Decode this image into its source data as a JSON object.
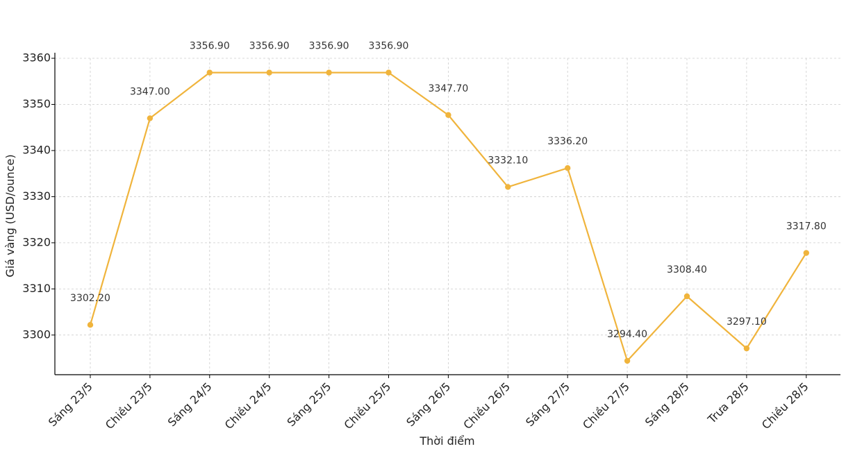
{
  "chart_data": {
    "type": "line",
    "categories": [
      "Sáng 23/5",
      "Chiều 23/5",
      "Sáng 24/5",
      "Chiều 24/5",
      "Sáng 25/5",
      "Chiều 25/5",
      "Sáng 26/5",
      "Chiều 26/5",
      "Sáng 27/5",
      "Chiều 27/5",
      "Sáng 28/5",
      "Trưa 28/5",
      "Chiều 28/5"
    ],
    "series": [
      {
        "values": [
          3302.2,
          3347.0,
          3356.9,
          3356.9,
          3356.9,
          3356.9,
          3347.7,
          3332.1,
          3336.2,
          3294.4,
          3308.4,
          3297.1,
          3317.8
        ]
      }
    ],
    "data_labels": [
      "3302.20",
      "3347.00",
      "3356.90",
      "3356.90",
      "3356.90",
      "3356.90",
      "3347.70",
      "3332.10",
      "3336.20",
      "3294.40",
      "3308.40",
      "3297.10",
      "3317.80"
    ],
    "title": "",
    "xlabel": "Thời điểm",
    "ylabel": "Giá vàng (USD/ounce)",
    "ylim": [
      3291.4,
      3360
    ],
    "yticks": [
      3300,
      3310,
      3320,
      3330,
      3340,
      3350,
      3360
    ],
    "grid": true,
    "color": "#f0b43c"
  }
}
